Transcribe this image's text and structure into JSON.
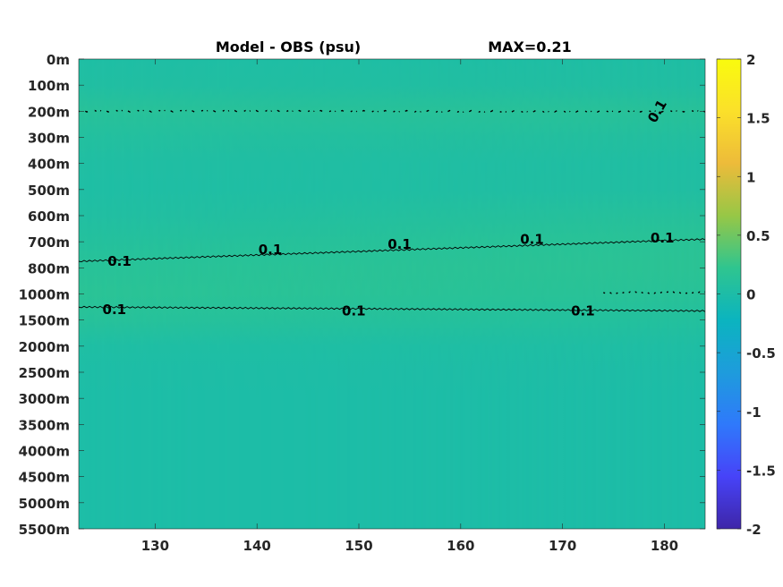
{
  "chart_data": {
    "type": "heatmap",
    "title": "Model - OBS (psu)",
    "subtitle": "MAX=0.21",
    "xlabel": "",
    "ylabel": "",
    "xlim": [
      122.5,
      184
    ],
    "x_ticks": [
      130,
      140,
      150,
      160,
      170,
      180
    ],
    "x_tick_labels": [
      "130",
      "140",
      "150",
      "160",
      "170",
      "180"
    ],
    "y_tick_labels": [
      "0m",
      "100m",
      "200m",
      "300m",
      "400m",
      "500m",
      "600m",
      "700m",
      "800m",
      "1000m",
      "1500m",
      "2000m",
      "2500m",
      "3000m",
      "3500m",
      "4000m",
      "4500m",
      "5000m",
      "5500m"
    ],
    "colorbar": {
      "range": [
        -2,
        2
      ],
      "ticks": [
        -2,
        -1.5,
        -1,
        -0.5,
        0,
        0.5,
        1,
        1.5,
        2
      ],
      "tick_labels": [
        "-2",
        "-1.5",
        "-1",
        "-0.5",
        "0",
        "0.5",
        "1",
        "1.5",
        "2"
      ],
      "colormap": [
        "#3e26a8",
        "#4743f8",
        "#2f79fb",
        "#1e9cdc",
        "#0bb4bf",
        "#2fc58f",
        "#97c746",
        "#edbb3a",
        "#fbe02a",
        "#f9fb0e"
      ]
    },
    "field": {
      "description_levels": "difference values per depth level (approx.)",
      "depth_index": [
        0,
        1,
        2,
        3,
        4,
        5,
        6,
        7,
        8,
        9,
        10,
        11,
        12,
        13,
        14,
        15,
        16,
        17,
        18
      ],
      "values_west": [
        0.03,
        0.05,
        0.13,
        0.07,
        0.04,
        0.03,
        0.05,
        0.09,
        0.14,
        0.16,
        0.12,
        0.03,
        0.01,
        0.0,
        0.0,
        0.0,
        0.0,
        0.0,
        0.0
      ],
      "values_east": [
        0.03,
        0.05,
        0.13,
        0.07,
        0.04,
        0.05,
        0.11,
        0.16,
        0.17,
        0.14,
        0.08,
        0.03,
        0.01,
        0.0,
        0.0,
        0.0,
        0.0,
        0.0,
        0.0
      ]
    },
    "contours": [
      {
        "level": 0.1,
        "label": "0.1",
        "x": [
          122.5,
          184
        ],
        "depth_index": [
          2.0,
          2.0
        ]
      },
      {
        "level": 0.1,
        "label": "0.1",
        "x": [
          122.5,
          184
        ],
        "depth_index": [
          7.75,
          6.9
        ]
      },
      {
        "level": 0.1,
        "label": "0.1",
        "x": [
          122.5,
          184
        ],
        "depth_index": [
          9.5,
          9.65
        ]
      },
      {
        "level": 0.1,
        "label": "0.1",
        "x": [
          174,
          184
        ],
        "depth_index": [
          8.95,
          8.95
        ]
      }
    ],
    "contour_labels": [
      {
        "text": "0.1",
        "x": 126.5,
        "depth_index": 7.75
      },
      {
        "text": "0.1",
        "x": 141.3,
        "depth_index": 7.3
      },
      {
        "text": "0.1",
        "x": 154.0,
        "depth_index": 7.1
      },
      {
        "text": "0.1",
        "x": 167.0,
        "depth_index": 6.9
      },
      {
        "text": "0.1",
        "x": 179.8,
        "depth_index": 6.85
      },
      {
        "text": "0.1",
        "x": 126.0,
        "depth_index": 9.6
      },
      {
        "text": "0.1",
        "x": 149.5,
        "depth_index": 9.65
      },
      {
        "text": "0.1",
        "x": 172.0,
        "depth_index": 9.65
      },
      {
        "text": "0.1",
        "x": 179.3,
        "depth_index": 2.0
      }
    ],
    "grid": false,
    "legend": "colorbar-right"
  }
}
